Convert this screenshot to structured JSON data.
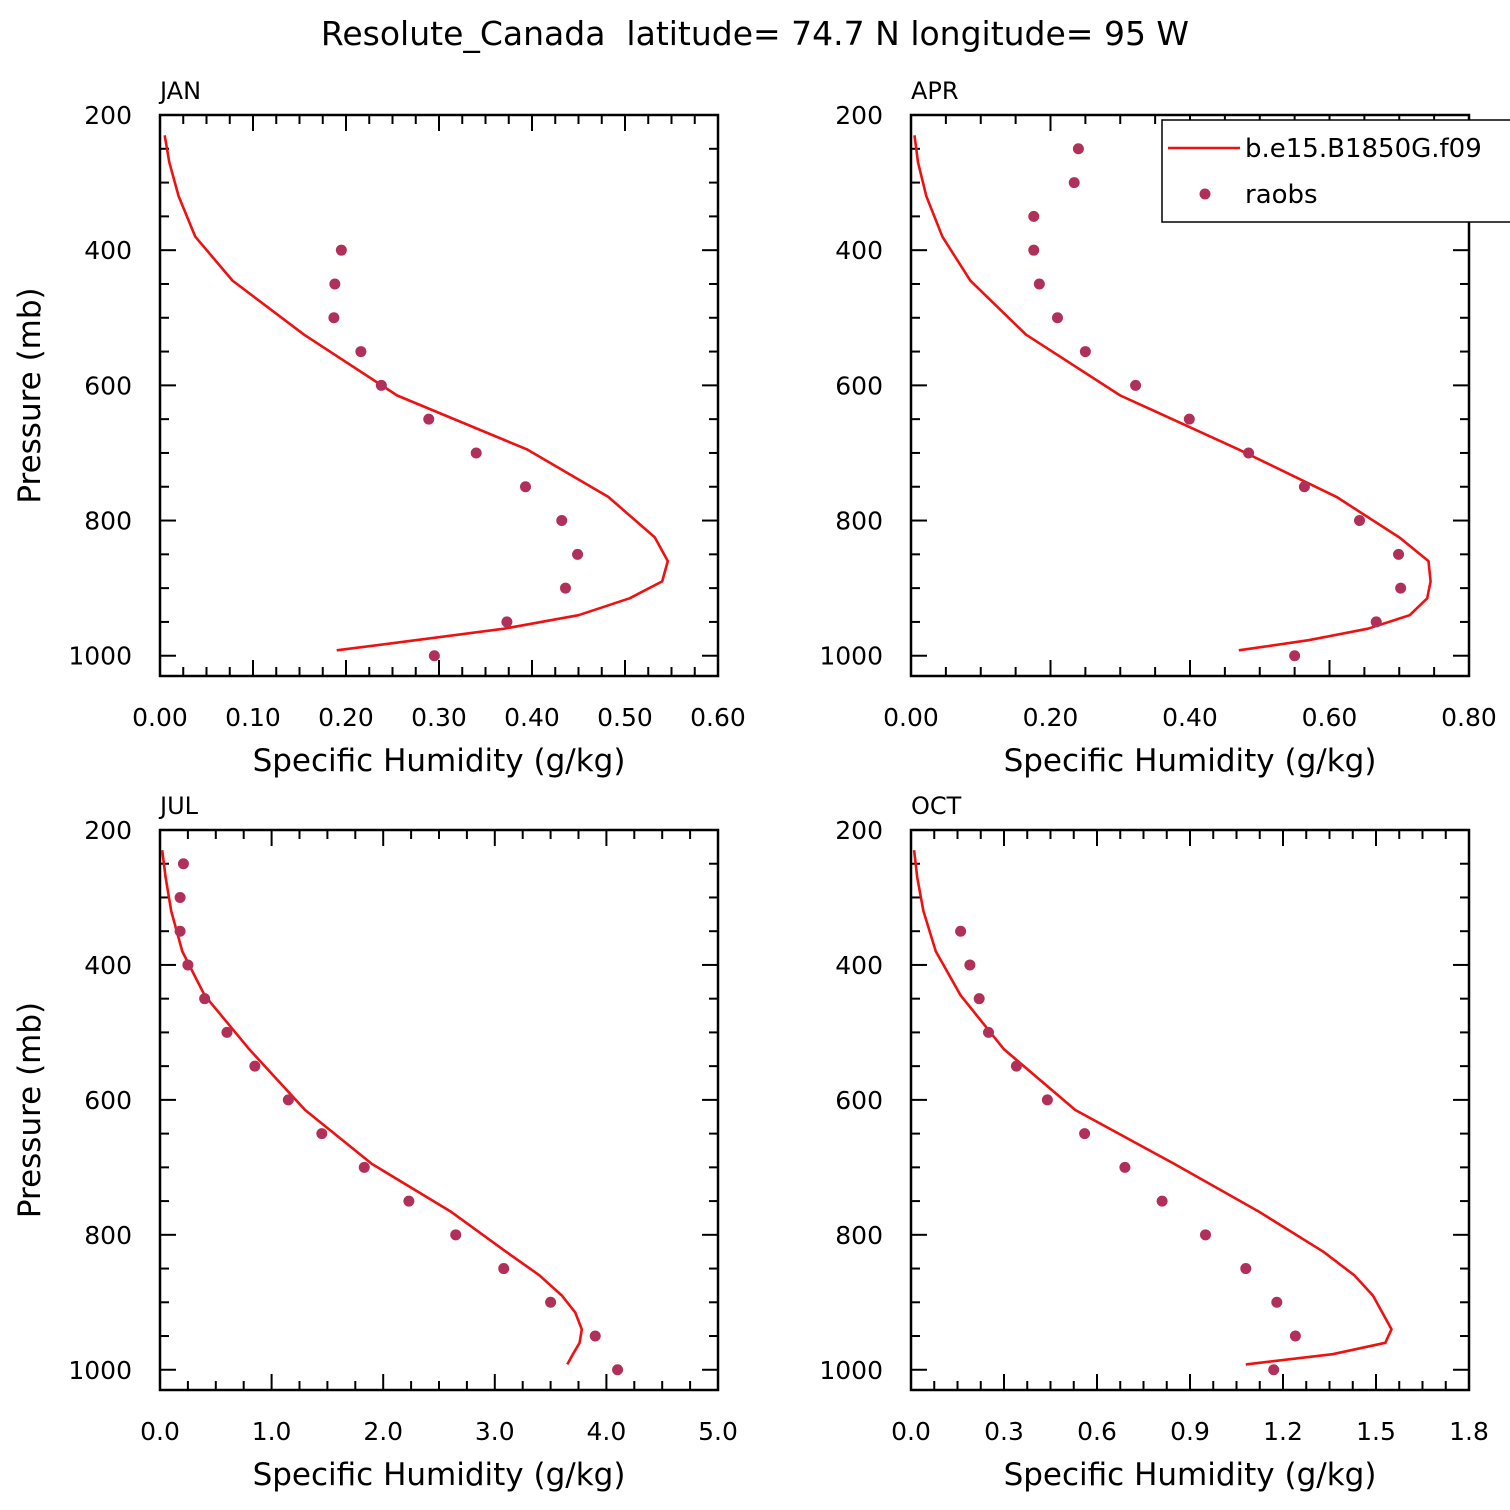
{
  "title": "Resolute_Canada  latitude= 74.7 N longitude= 95 W",
  "colors": {
    "model": "#ee1111",
    "obs": "#b0305a",
    "axis": "#000000"
  },
  "legend": {
    "model_label": "b.e15.B1850G.f09",
    "obs_label": "raobs"
  },
  "chart_data": [
    {
      "type": "line",
      "panel": "JAN",
      "xlabel": "Specific Humidity (g/kg)",
      "ylabel": "Pressure (mb)",
      "xlim": [
        0,
        0.6
      ],
      "ylim": [
        1000,
        200
      ],
      "y_reversed": true,
      "xticks": [
        "0.00",
        "0.10",
        "0.20",
        "0.30",
        "0.40",
        "0.50",
        "0.60"
      ],
      "xtick_values": [
        0,
        0.1,
        0.2,
        0.3,
        0.4,
        0.5,
        0.6
      ],
      "yticks": [
        "200",
        "400",
        "600",
        "800",
        "1000"
      ],
      "ytick_values": [
        200,
        400,
        600,
        800,
        1000
      ],
      "series": [
        {
          "name": "b.e15.B1850G.f09",
          "x": [
            0.005,
            0.01,
            0.02,
            0.038,
            0.078,
            0.155,
            0.255,
            0.395,
            0.482,
            0.532,
            0.546,
            0.54,
            0.505,
            0.45,
            0.37,
            0.275,
            0.19
          ],
          "y": [
            230,
            270,
            320,
            380,
            445,
            525,
            615,
            695,
            765,
            825,
            860,
            890,
            915,
            940,
            960,
            977,
            992
          ]
        },
        {
          "name": "raobs",
          "x": [
            0.195,
            0.188,
            0.187,
            0.216,
            0.238,
            0.289,
            0.34,
            0.393,
            0.432,
            0.449,
            0.436,
            0.373,
            0.295
          ],
          "y": [
            400,
            450,
            500,
            550,
            600,
            650,
            700,
            750,
            800,
            850,
            900,
            950,
            1000
          ]
        }
      ]
    },
    {
      "type": "line",
      "panel": "APR",
      "xlabel": "Specific Humidity (g/kg)",
      "ylabel": "",
      "xlim": [
        0,
        0.8
      ],
      "ylim": [
        1000,
        200
      ],
      "y_reversed": true,
      "xticks": [
        "0.00",
        "0.20",
        "0.40",
        "0.60",
        "0.80"
      ],
      "xtick_values": [
        0,
        0.2,
        0.4,
        0.6,
        0.8
      ],
      "yticks": [
        "200",
        "400",
        "600",
        "800",
        "1000"
      ],
      "ytick_values": [
        200,
        400,
        600,
        800,
        1000
      ],
      "series": [
        {
          "name": "b.e15.B1850G.f09",
          "x": [
            0.005,
            0.01,
            0.022,
            0.045,
            0.085,
            0.165,
            0.3,
            0.47,
            0.61,
            0.7,
            0.742,
            0.745,
            0.74,
            0.715,
            0.655,
            0.57,
            0.47
          ],
          "y": [
            230,
            270,
            320,
            380,
            445,
            525,
            615,
            695,
            765,
            825,
            860,
            890,
            915,
            940,
            960,
            977,
            992
          ]
        },
        {
          "name": "raobs",
          "x": [
            0.24,
            0.234,
            0.176,
            0.176,
            0.184,
            0.21,
            0.25,
            0.322,
            0.399,
            0.484,
            0.564,
            0.643,
            0.699,
            0.702,
            0.667,
            0.55
          ],
          "y": [
            250,
            300,
            350,
            400,
            450,
            500,
            550,
            600,
            650,
            700,
            750,
            800,
            850,
            900,
            950,
            1000
          ]
        }
      ]
    },
    {
      "type": "line",
      "panel": "JUL",
      "xlabel": "Specific Humidity (g/kg)",
      "ylabel": "Pressure (mb)",
      "xlim": [
        0,
        5
      ],
      "ylim": [
        1000,
        200
      ],
      "y_reversed": true,
      "xticks": [
        "0.0",
        "1.0",
        "2.0",
        "3.0",
        "4.0",
        "5.0"
      ],
      "xtick_values": [
        0,
        1,
        2,
        3,
        4,
        5
      ],
      "yticks": [
        "200",
        "400",
        "600",
        "800",
        "1000"
      ],
      "ytick_values": [
        200,
        400,
        600,
        800,
        1000
      ],
      "series": [
        {
          "name": "b.e15.B1850G.f09",
          "x": [
            0.02,
            0.05,
            0.1,
            0.2,
            0.4,
            0.8,
            1.3,
            1.9,
            2.6,
            3.1,
            3.4,
            3.6,
            3.72,
            3.78,
            3.76,
            3.7,
            3.65
          ],
          "y": [
            230,
            270,
            320,
            380,
            445,
            525,
            615,
            695,
            765,
            825,
            860,
            890,
            915,
            940,
            960,
            977,
            992
          ]
        },
        {
          "name": "raobs",
          "x": [
            0.21,
            0.18,
            0.18,
            0.25,
            0.4,
            0.6,
            0.85,
            1.15,
            1.45,
            1.83,
            2.23,
            2.65,
            3.08,
            3.5,
            3.9,
            4.1
          ],
          "y": [
            250,
            300,
            350,
            400,
            450,
            500,
            550,
            600,
            650,
            700,
            750,
            800,
            850,
            900,
            950,
            1000
          ]
        }
      ]
    },
    {
      "type": "line",
      "panel": "OCT",
      "xlabel": "Specific Humidity (g/kg)",
      "ylabel": "",
      "xlim": [
        0,
        1.8
      ],
      "ylim": [
        1000,
        200
      ],
      "y_reversed": true,
      "xticks": [
        "0.0",
        "0.3",
        "0.6",
        "0.9",
        "1.2",
        "1.5",
        "1.8"
      ],
      "xtick_values": [
        0,
        0.3,
        0.6,
        0.9,
        1.2,
        1.5,
        1.8
      ],
      "yticks": [
        "200",
        "400",
        "600",
        "800",
        "1000"
      ],
      "ytick_values": [
        200,
        400,
        600,
        800,
        1000
      ],
      "series": [
        {
          "name": "b.e15.B1850G.f09",
          "x": [
            0.01,
            0.02,
            0.04,
            0.08,
            0.16,
            0.3,
            0.53,
            0.85,
            1.12,
            1.33,
            1.43,
            1.49,
            1.52,
            1.55,
            1.53,
            1.36,
            1.08
          ],
          "y": [
            230,
            270,
            320,
            380,
            445,
            525,
            615,
            695,
            765,
            825,
            860,
            890,
            915,
            940,
            960,
            977,
            992
          ]
        },
        {
          "name": "raobs",
          "x": [
            0.16,
            0.19,
            0.22,
            0.25,
            0.34,
            0.44,
            0.56,
            0.69,
            0.81,
            0.95,
            1.08,
            1.18,
            1.24,
            1.17
          ],
          "y": [
            350,
            400,
            450,
            500,
            550,
            600,
            650,
            700,
            750,
            800,
            850,
            900,
            950,
            1000
          ]
        }
      ]
    }
  ]
}
